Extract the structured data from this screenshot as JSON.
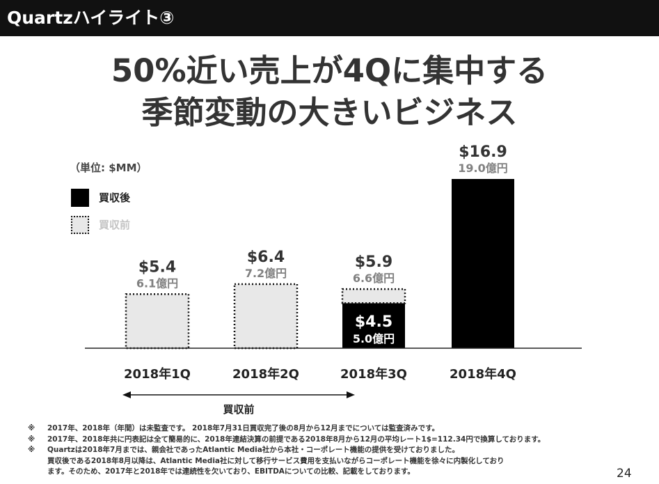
{
  "header": {
    "title": "Quartzハイライト③"
  },
  "headline": {
    "line1": "50%近い売上が4Qに集中する",
    "line2": "季節変動の大きいビジネス"
  },
  "unit_label": "（単位: $MM）",
  "legend": {
    "after": {
      "label": "買収後",
      "color": "#000000"
    },
    "before": {
      "label": "買収前",
      "color": "#e8e8e8"
    }
  },
  "chart_data": {
    "type": "bar",
    "title": "",
    "unit": "$MM",
    "ylim": [
      0,
      20
    ],
    "categories": [
      "2018年1Q",
      "2018年2Q",
      "2018年3Q",
      "2018年4Q"
    ],
    "series": [
      {
        "name": "買収前",
        "values": [
          5.4,
          6.4,
          1.4,
          0
        ]
      },
      {
        "name": "買収後",
        "values": [
          0,
          0,
          4.5,
          16.9
        ]
      }
    ],
    "totals": [
      {
        "value_label": "$5.4",
        "yen_label": "6.1億円"
      },
      {
        "value_label": "$6.4",
        "yen_label": "7.2億円"
      },
      {
        "value_label": "$5.9",
        "yen_label": "6.6億円"
      },
      {
        "value_label": "$16.9",
        "yen_label": "19.0億円"
      }
    ],
    "inner_label": {
      "value_label": "$4.5",
      "yen_label": "5.0億円"
    },
    "range_annotation": {
      "label": "買収前"
    },
    "colors": {
      "before_fill": "#e8e8e8",
      "after_fill": "#000000",
      "value_text": "#333333",
      "yen_text": "#808080"
    }
  },
  "notes": [
    {
      "mark": "※",
      "lines": [
        "2017年、2018年（年間）は未監査です。 2018年7月31日買収完了後の8月から12月までについては監査済みです。"
      ]
    },
    {
      "mark": "※",
      "lines": [
        "2017年、2018年共に円表記は全て簡易的に、2018年連結決算の前提である2018年8月から12月の平均レート1$=112.34円で換算しております。"
      ]
    },
    {
      "mark": "※",
      "lines": [
        "Quartzは2018年7月までは、親会社であったAtlantic Media社から本社・コーポレート機能の提供を受けておりました。",
        "買収後である2018年8月以降は、Atlantic Media社に対して移行サービス費用を支払いながらコーポレート機能を徐々に内製化しており",
        "ます。そのため、2017年と2018年では連続性を欠いており、EBITDAについての比較、記載をしております。"
      ]
    }
  ],
  "page_number": "24"
}
